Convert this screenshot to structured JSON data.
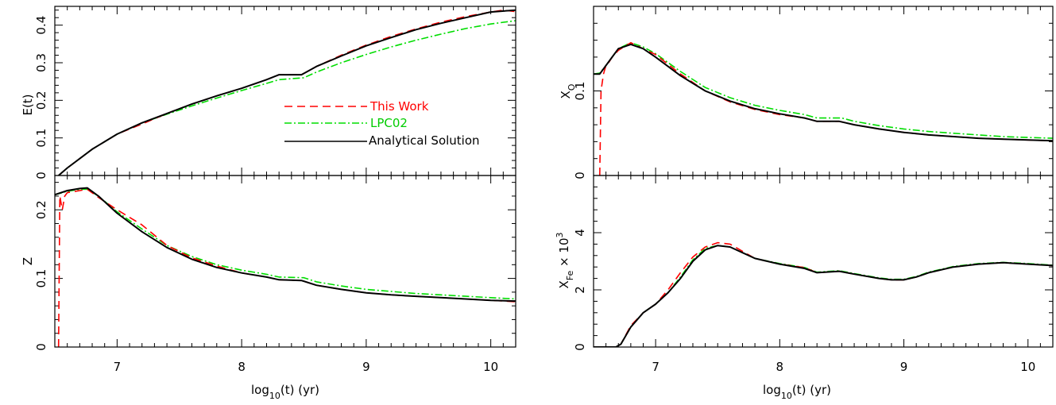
{
  "colors": {
    "this_work": "#ff0000",
    "lpc02": "#00dd00",
    "analytical": "#000000"
  },
  "labels": {
    "x_left": "log",
    "x_right": "log",
    "x_sub": "10",
    "x_tail": "(t)  (yr)",
    "y_E": "E(t)",
    "y_Z": "Z",
    "y_XO": "X",
    "y_XO_sub": "O",
    "y_XFe": "X",
    "y_XFe_sub": "Fe",
    "y_XFe_tail": " × 10",
    "y_XFe_sup": "3"
  },
  "legend": [
    "This Work",
    "LPC02",
    "Analytical Solution"
  ],
  "chart_data": [
    {
      "type": "line",
      "panel": "top-left",
      "xlim": [
        6.5,
        10.2
      ],
      "ylim": [
        0,
        0.45
      ],
      "xticks": [
        "7",
        "8",
        "9",
        "10"
      ],
      "yticks": [
        "0",
        "0.1",
        "0.2",
        "0.3",
        "0.4"
      ],
      "ylabel": "E(t)",
      "legend": "inside, right of center",
      "series": [
        {
          "name": "Analytical Solution",
          "style": "solid",
          "x": [
            6.53,
            6.6,
            6.7,
            6.8,
            6.9,
            7.0,
            7.2,
            7.4,
            7.6,
            7.8,
            8.0,
            8.2,
            8.3,
            8.48,
            8.6,
            8.8,
            9.0,
            9.2,
            9.4,
            9.6,
            9.8,
            10.0,
            10.2
          ],
          "y": [
            0,
            0.02,
            0.045,
            0.07,
            0.09,
            0.11,
            0.14,
            0.165,
            0.19,
            0.212,
            0.232,
            0.255,
            0.268,
            0.268,
            0.29,
            0.318,
            0.345,
            0.367,
            0.388,
            0.405,
            0.42,
            0.435,
            0.44
          ]
        },
        {
          "name": "This Work",
          "style": "dashed",
          "x": [
            6.53,
            6.6,
            6.7,
            6.8,
            6.9,
            7.0,
            7.2,
            7.4,
            7.6,
            7.8,
            8.0,
            8.2,
            8.3,
            8.48,
            8.6,
            8.8,
            9.0,
            9.2,
            9.4,
            9.6,
            9.8,
            10.0,
            10.1,
            10.2
          ],
          "y": [
            0,
            0.02,
            0.045,
            0.07,
            0.09,
            0.11,
            0.137,
            0.165,
            0.19,
            0.212,
            0.232,
            0.255,
            0.268,
            0.268,
            0.29,
            0.32,
            0.347,
            0.37,
            0.39,
            0.408,
            0.423,
            0.435,
            0.44,
            0.436
          ]
        },
        {
          "name": "LPC02",
          "style": "dashdot",
          "x": [
            6.53,
            6.6,
            6.7,
            6.8,
            6.9,
            7.0,
            7.2,
            7.4,
            7.6,
            7.8,
            8.0,
            8.2,
            8.3,
            8.5,
            8.6,
            8.8,
            9.0,
            9.2,
            9.4,
            9.6,
            9.8,
            10.0,
            10.2
          ],
          "y": [
            0,
            0.02,
            0.045,
            0.07,
            0.09,
            0.11,
            0.14,
            0.163,
            0.185,
            0.206,
            0.226,
            0.245,
            0.255,
            0.26,
            0.275,
            0.3,
            0.322,
            0.342,
            0.36,
            0.376,
            0.391,
            0.403,
            0.412
          ]
        }
      ]
    },
    {
      "type": "line",
      "panel": "bottom-left",
      "xlim": [
        6.5,
        10.2
      ],
      "ylim": [
        0,
        0.25
      ],
      "xticks": [
        "7",
        "8",
        "9",
        "10"
      ],
      "yticks": [
        "0",
        "0.1",
        "0.2"
      ],
      "xlabel": "log10(t)  (yr)",
      "ylabel": "Z",
      "series": [
        {
          "name": "Analytical Solution",
          "style": "solid",
          "x": [
            6.5,
            6.6,
            6.7,
            6.76,
            6.85,
            7.0,
            7.2,
            7.4,
            7.6,
            7.8,
            8.0,
            8.2,
            8.3,
            8.48,
            8.6,
            8.8,
            9.0,
            9.2,
            9.4,
            9.6,
            9.8,
            10.0,
            10.2
          ],
          "y": [
            0.222,
            0.228,
            0.231,
            0.232,
            0.22,
            0.195,
            0.168,
            0.145,
            0.128,
            0.116,
            0.108,
            0.102,
            0.098,
            0.097,
            0.09,
            0.084,
            0.079,
            0.076,
            0.074,
            0.072,
            0.07,
            0.068,
            0.067
          ]
        },
        {
          "name": "This Work",
          "style": "dashed",
          "x": [
            6.53,
            6.54,
            6.56,
            6.58,
            6.6,
            6.7,
            6.76,
            6.85,
            7.0,
            7.2,
            7.4,
            7.6,
            7.8,
            8.0,
            8.2,
            8.3,
            8.48,
            8.6,
            8.8,
            9.0,
            9.2,
            9.4,
            9.6,
            9.8,
            10.0,
            10.2
          ],
          "y": [
            0,
            0.22,
            0.2,
            0.22,
            0.225,
            0.228,
            0.23,
            0.218,
            0.2,
            0.178,
            0.148,
            0.13,
            0.118,
            0.108,
            0.102,
            0.098,
            0.097,
            0.09,
            0.084,
            0.079,
            0.076,
            0.074,
            0.072,
            0.07,
            0.068,
            0.066
          ]
        },
        {
          "name": "LPC02",
          "style": "dashdot",
          "x": [
            6.5,
            6.6,
            6.7,
            6.76,
            6.85,
            7.0,
            7.2,
            7.4,
            7.6,
            7.8,
            8.0,
            8.2,
            8.3,
            8.5,
            8.6,
            8.8,
            9.0,
            9.2,
            9.4,
            9.6,
            9.8,
            10.0,
            10.2
          ],
          "y": [
            0.222,
            0.227,
            0.23,
            0.23,
            0.22,
            0.197,
            0.172,
            0.148,
            0.132,
            0.12,
            0.112,
            0.106,
            0.102,
            0.101,
            0.095,
            0.089,
            0.084,
            0.081,
            0.078,
            0.076,
            0.074,
            0.072,
            0.07
          ]
        }
      ]
    },
    {
      "type": "line",
      "panel": "top-right",
      "xlim": [
        6.5,
        10.2
      ],
      "ylim": [
        0,
        0.2
      ],
      "xticks": [
        "7",
        "8",
        "9",
        "10"
      ],
      "yticks": [
        "0",
        "0.1"
      ],
      "ylabel": "X_O",
      "series": [
        {
          "name": "Analytical Solution",
          "style": "solid",
          "x": [
            6.5,
            6.55,
            6.6,
            6.65,
            6.7,
            6.8,
            6.9,
            7.0,
            7.2,
            7.4,
            7.6,
            7.8,
            8.0,
            8.2,
            8.3,
            8.48,
            8.6,
            8.8,
            9.0,
            9.2,
            9.4,
            9.6,
            9.8,
            10.0,
            10.2
          ],
          "y": [
            0.12,
            0.12,
            0.13,
            0.14,
            0.15,
            0.155,
            0.15,
            0.14,
            0.118,
            0.1,
            0.088,
            0.079,
            0.073,
            0.068,
            0.064,
            0.064,
            0.06,
            0.055,
            0.051,
            0.048,
            0.046,
            0.044,
            0.043,
            0.042,
            0.041
          ]
        },
        {
          "name": "This Work",
          "style": "dashed",
          "x": [
            6.55,
            6.56,
            6.58,
            6.6,
            6.62,
            6.65,
            6.7,
            6.8,
            6.9,
            7.0,
            7.2,
            7.4,
            7.6,
            7.8,
            8.0,
            8.2,
            8.3,
            8.48,
            8.6,
            8.8,
            9.0,
            9.2,
            9.4,
            9.6,
            9.8,
            10.0,
            10.2
          ],
          "y": [
            0,
            0.1,
            0.12,
            0.13,
            0.133,
            0.14,
            0.148,
            0.157,
            0.15,
            0.143,
            0.12,
            0.1,
            0.087,
            0.078,
            0.072,
            0.068,
            0.064,
            0.064,
            0.06,
            0.055,
            0.051,
            0.048,
            0.046,
            0.044,
            0.043,
            0.042,
            0.041
          ]
        },
        {
          "name": "LPC02",
          "style": "dashdot",
          "x": [
            6.5,
            6.55,
            6.6,
            6.65,
            6.7,
            6.8,
            6.9,
            7.0,
            7.2,
            7.4,
            7.6,
            7.8,
            8.0,
            8.2,
            8.3,
            8.5,
            8.6,
            8.8,
            9.0,
            9.2,
            9.4,
            9.6,
            9.8,
            10.0,
            10.2
          ],
          "y": [
            0.12,
            0.121,
            0.13,
            0.14,
            0.15,
            0.157,
            0.152,
            0.144,
            0.123,
            0.104,
            0.092,
            0.083,
            0.077,
            0.072,
            0.068,
            0.068,
            0.064,
            0.059,
            0.055,
            0.052,
            0.05,
            0.048,
            0.046,
            0.045,
            0.044
          ]
        }
      ]
    },
    {
      "type": "line",
      "panel": "bottom-right",
      "xlim": [
        6.5,
        10.2
      ],
      "ylim": [
        0,
        6
      ],
      "xticks": [
        "7",
        "8",
        "9",
        "10"
      ],
      "yticks": [
        "0",
        "2",
        "4"
      ],
      "xlabel": "log10(t)  (yr)",
      "ylabel": "X_Fe × 10^3",
      "series": [
        {
          "name": "Analytical Solution",
          "style": "solid",
          "x": [
            6.5,
            6.6,
            6.68,
            6.72,
            6.8,
            6.9,
            7.0,
            7.1,
            7.2,
            7.3,
            7.4,
            7.5,
            7.6,
            7.7,
            7.8,
            8.0,
            8.2,
            8.3,
            8.48,
            8.6,
            8.8,
            8.9,
            9.0,
            9.1,
            9.2,
            9.4,
            9.6,
            9.8,
            10.0,
            10.2
          ],
          "y": [
            0,
            0,
            0,
            0.1,
            0.7,
            1.2,
            1.5,
            1.9,
            2.4,
            3.0,
            3.4,
            3.55,
            3.5,
            3.3,
            3.1,
            2.9,
            2.75,
            2.6,
            2.65,
            2.55,
            2.4,
            2.35,
            2.35,
            2.45,
            2.6,
            2.8,
            2.9,
            2.95,
            2.9,
            2.85
          ]
        },
        {
          "name": "This Work",
          "style": "dashed",
          "x": [
            6.5,
            6.6,
            6.68,
            6.72,
            6.8,
            6.9,
            7.0,
            7.1,
            7.2,
            7.3,
            7.4,
            7.5,
            7.6,
            7.7,
            7.8,
            8.0,
            8.2,
            8.3,
            8.48,
            8.6,
            8.8,
            8.9,
            9.0,
            9.1,
            9.2,
            9.4,
            9.6,
            9.8,
            10.0,
            10.2
          ],
          "y": [
            0,
            0,
            0,
            0.1,
            0.75,
            1.2,
            1.5,
            2.0,
            2.6,
            3.15,
            3.5,
            3.65,
            3.6,
            3.35,
            3.1,
            2.9,
            2.78,
            2.6,
            2.65,
            2.55,
            2.4,
            2.35,
            2.35,
            2.45,
            2.6,
            2.8,
            2.9,
            2.95,
            2.9,
            2.85
          ]
        },
        {
          "name": "LPC02",
          "style": "dashdot",
          "x": [
            6.5,
            6.6,
            6.68,
            6.72,
            6.8,
            6.9,
            7.0,
            7.1,
            7.2,
            7.3,
            7.4,
            7.5,
            7.6,
            7.7,
            7.8,
            8.0,
            8.2,
            8.3,
            8.48,
            8.6,
            8.8,
            8.9,
            9.0,
            9.1,
            9.2,
            9.4,
            9.6,
            9.8,
            10.0,
            10.2
          ],
          "y": [
            0,
            0,
            0,
            0.1,
            0.7,
            1.2,
            1.5,
            1.9,
            2.45,
            3.05,
            3.45,
            3.55,
            3.5,
            3.3,
            3.1,
            2.92,
            2.78,
            2.62,
            2.67,
            2.57,
            2.42,
            2.37,
            2.37,
            2.47,
            2.62,
            2.82,
            2.92,
            2.96,
            2.92,
            2.86
          ]
        }
      ]
    }
  ]
}
